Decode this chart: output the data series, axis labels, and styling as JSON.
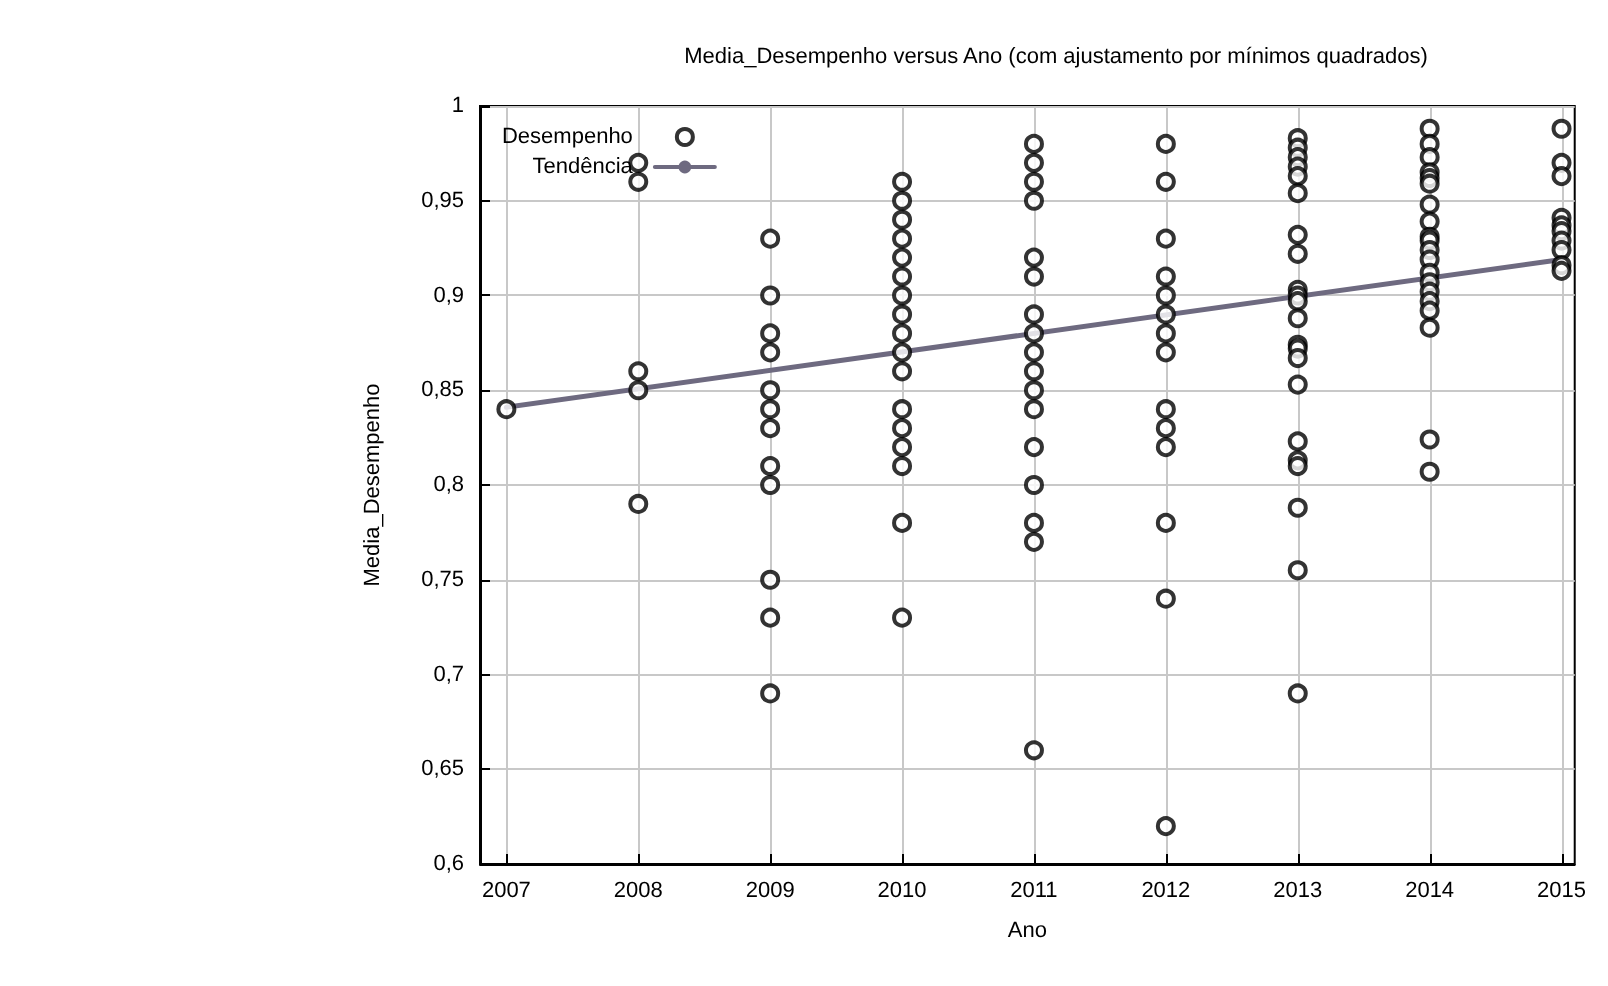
{
  "chart_data": {
    "type": "scatter",
    "title": "Media_Desempenho versus Ano (com ajustamento por mínimos quadrados)",
    "xlabel": "Ano",
    "ylabel": "Media_Desempenho",
    "xlim": [
      2006.8,
      2015.1
    ],
    "xticks": [
      2007,
      2008,
      2009,
      2010,
      2011,
      2012,
      2013,
      2014,
      2015
    ],
    "ylim": [
      0.6,
      1
    ],
    "yticks": [
      {
        "value": 0.6,
        "label": "0,6"
      },
      {
        "value": 0.65,
        "label": "0,65"
      },
      {
        "value": 0.7,
        "label": "0,7"
      },
      {
        "value": 0.75,
        "label": "0,75"
      },
      {
        "value": 0.8,
        "label": "0,8"
      },
      {
        "value": 0.85,
        "label": "0,85"
      },
      {
        "value": 0.9,
        "label": "0,9"
      },
      {
        "value": 0.95,
        "label": "0,95"
      },
      {
        "value": 1,
        "label": "1"
      }
    ],
    "grid": true,
    "legend": "top left",
    "series": [
      {
        "name": "Desempenho",
        "type": "scatter",
        "color": "#000000",
        "marker": "circle",
        "x": [
          2007,
          2008,
          2008,
          2008,
          2008,
          2008,
          2009,
          2009,
          2009,
          2009,
          2009,
          2009,
          2009,
          2009,
          2009,
          2009,
          2009,
          2009,
          2010,
          2010,
          2010,
          2010,
          2010,
          2010,
          2010,
          2010,
          2010,
          2010,
          2010,
          2010,
          2010,
          2010,
          2010,
          2010,
          2010,
          2011,
          2011,
          2011,
          2011,
          2011,
          2011,
          2011,
          2011,
          2011,
          2011,
          2011,
          2011,
          2011,
          2011,
          2011,
          2011,
          2011,
          2012,
          2012,
          2012,
          2012,
          2012,
          2012,
          2012,
          2012,
          2012,
          2012,
          2012,
          2012,
          2012,
          2012,
          2013,
          2013,
          2013,
          2013,
          2013,
          2013,
          2013,
          2013,
          2013,
          2013,
          2013,
          2013,
          2013,
          2013,
          2013,
          2013,
          2013,
          2013,
          2013,
          2013,
          2013,
          2013,
          2014,
          2014,
          2014,
          2014,
          2014,
          2014,
          2014,
          2014,
          2014,
          2014,
          2014,
          2014,
          2014,
          2014,
          2014,
          2014,
          2014,
          2014,
          2014,
          2014,
          2015,
          2015,
          2015,
          2015,
          2015,
          2015,
          2015,
          2015,
          2015,
          2015
        ],
        "values": [
          0.84,
          0.97,
          0.96,
          0.86,
          0.85,
          0.79,
          0.93,
          0.9,
          0.88,
          0.87,
          0.85,
          0.84,
          0.83,
          0.81,
          0.8,
          0.75,
          0.73,
          0.69,
          0.96,
          0.95,
          0.94,
          0.93,
          0.92,
          0.91,
          0.9,
          0.89,
          0.88,
          0.87,
          0.86,
          0.84,
          0.83,
          0.82,
          0.81,
          0.78,
          0.73,
          0.98,
          0.97,
          0.96,
          0.95,
          0.92,
          0.91,
          0.89,
          0.88,
          0.87,
          0.86,
          0.85,
          0.84,
          0.82,
          0.8,
          0.78,
          0.77,
          0.66,
          0.98,
          0.96,
          0.93,
          0.91,
          0.9,
          0.89,
          0.88,
          0.87,
          0.84,
          0.83,
          0.82,
          0.78,
          0.74,
          0.62,
          0.983,
          0.978,
          0.973,
          0.968,
          0.963,
          0.954,
          0.932,
          0.922,
          0.903,
          0.9,
          0.897,
          0.888,
          0.874,
          0.872,
          0.867,
          0.853,
          0.823,
          0.813,
          0.81,
          0.788,
          0.755,
          0.69,
          0.988,
          0.98,
          0.973,
          0.965,
          0.962,
          0.959,
          0.948,
          0.939,
          0.931,
          0.929,
          0.924,
          0.919,
          0.912,
          0.907,
          0.902,
          0.897,
          0.892,
          0.883,
          0.824,
          0.807,
          0.988,
          0.97,
          0.963,
          0.941,
          0.937,
          0.934,
          0.929,
          0.924,
          0.916,
          0.913
        ]
      },
      {
        "name": "Tendência",
        "type": "line",
        "color": "#6e6a80",
        "marker": "none",
        "x": [
          2007,
          2015
        ],
        "values": [
          0.841,
          0.919
        ]
      }
    ]
  }
}
